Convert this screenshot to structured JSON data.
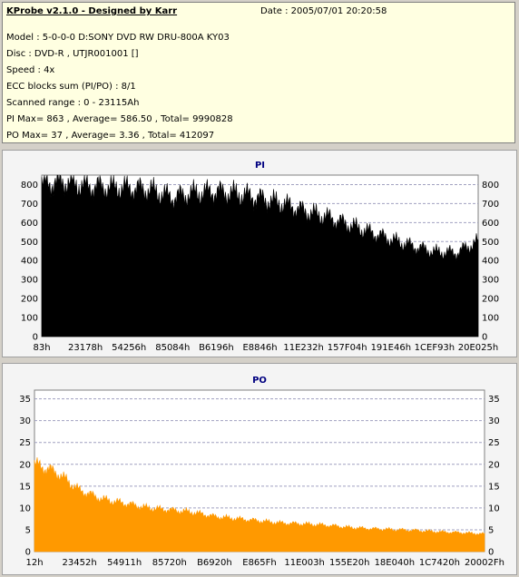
{
  "header": {
    "title": "KProbe v2.1.0 - Designed by Karr",
    "date": "Date : 2005/07/01 20:20:58",
    "lines": [
      "Model : 5-0-0-0 D:SONY    DVD RW DRU-800A  KY03",
      "Disc : DVD-R , UTJR001001 []",
      "Speed : 4x",
      "ECC blocks sum (PI/PO) : 8/1",
      "Scanned range : 0 - 23115Ah",
      "PI Max= 863 , Average= 586.50 , Total= 9990828",
      "PO Max= 37 , Average= 3.36 , Total= 412097"
    ]
  },
  "chart_data": [
    {
      "type": "area",
      "title": "PI",
      "ylim": [
        0,
        850
      ],
      "yticks": [
        0,
        100,
        200,
        300,
        400,
        500,
        600,
        700,
        800
      ],
      "xticks": [
        "83h",
        "23178h",
        "54256h",
        "85084h",
        "B6196h",
        "E8846h",
        "11E232h",
        "157F04h",
        "191E46h",
        "1CEF93h",
        "20E025h"
      ],
      "grid": true,
      "color": "#000000",
      "series": [
        {
          "x": [
            0,
            0.05,
            0.1,
            0.15,
            0.2,
            0.25,
            0.3,
            0.35,
            0.4,
            0.45,
            0.5,
            0.55,
            0.6,
            0.65,
            0.7,
            0.75,
            0.8,
            0.85,
            0.9,
            0.95,
            1.0
          ],
          "values": [
            800,
            815,
            790,
            785,
            780,
            770,
            730,
            755,
            760,
            750,
            725,
            700,
            660,
            630,
            590,
            550,
            510,
            475,
            445,
            440,
            500
          ]
        }
      ]
    },
    {
      "type": "area",
      "title": "PO",
      "ylim": [
        0,
        37
      ],
      "yticks": [
        0,
        5,
        10,
        15,
        20,
        25,
        30,
        35
      ],
      "xticks": [
        "12h",
        "23452h",
        "54911h",
        "85720h",
        "B6920h",
        "E865Fh",
        "11E003h",
        "155E20h",
        "18E040h",
        "1C7420h",
        "20002Fh"
      ],
      "grid": true,
      "color": "#ff9900",
      "series": [
        {
          "x": [
            0,
            0.05,
            0.1,
            0.15,
            0.2,
            0.25,
            0.3,
            0.35,
            0.4,
            0.45,
            0.5,
            0.55,
            0.6,
            0.65,
            0.7,
            0.75,
            0.8,
            0.85,
            0.9,
            0.95,
            1.0
          ],
          "values": [
            20,
            18,
            14,
            12,
            11,
            10,
            9.5,
            9,
            8,
            7.5,
            7,
            6.5,
            6.3,
            6,
            5.5,
            5.2,
            5,
            4.8,
            4.5,
            4.3,
            4
          ]
        }
      ]
    }
  ]
}
